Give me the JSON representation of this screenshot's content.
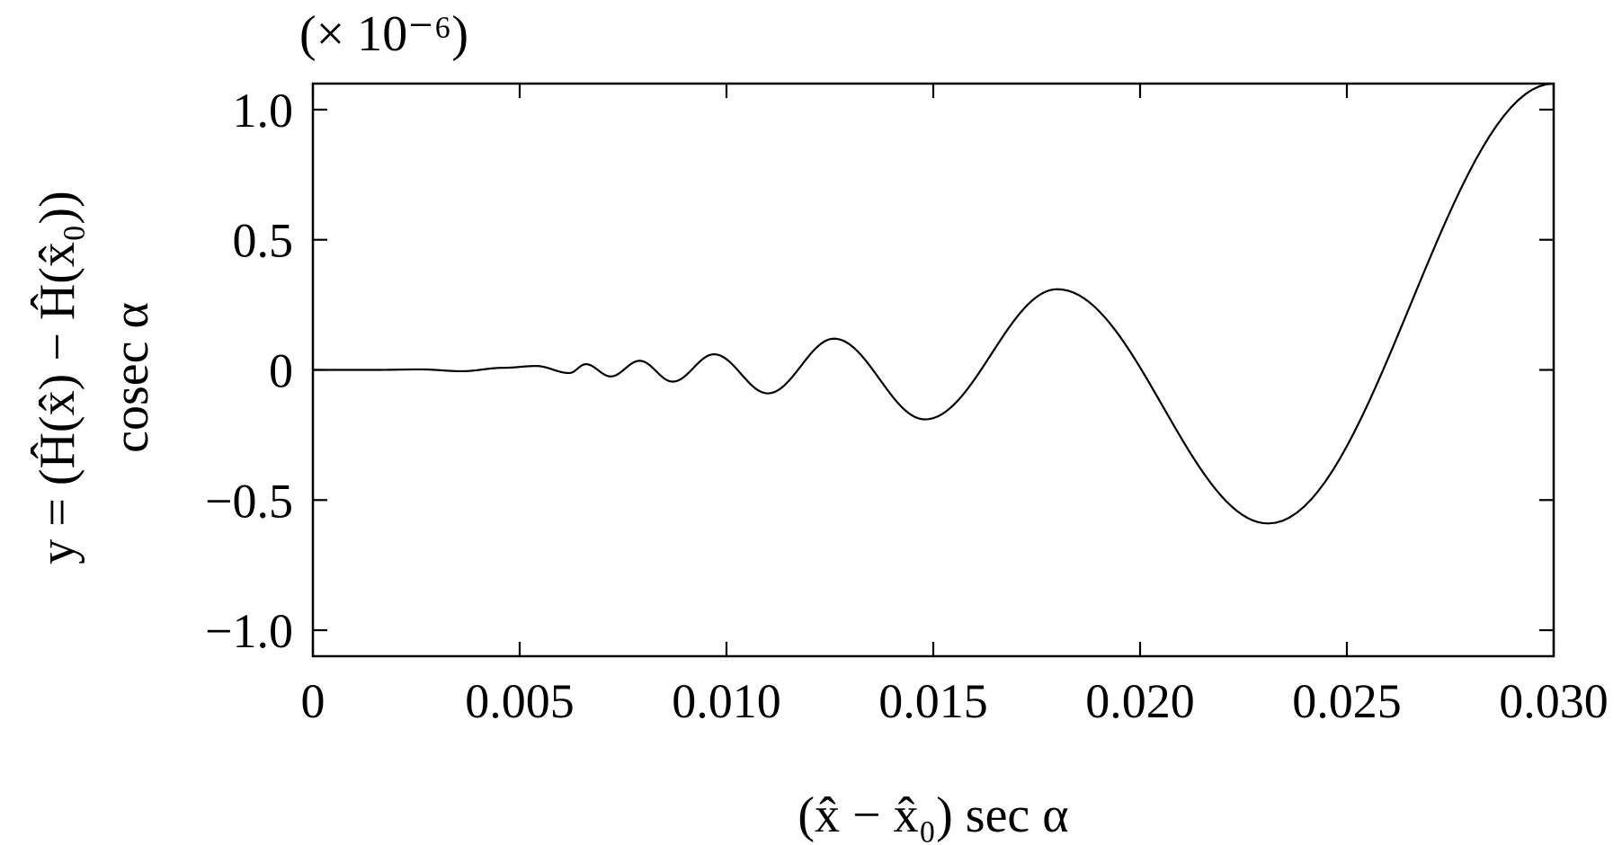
{
  "chart_data": {
    "type": "line",
    "title": "",
    "multiplier_label": "(× 10⁻⁶)",
    "xlabel": "(x̂ − x̂₀) sec α",
    "ylabel": "y = (Ĥ(x̂) − Ĥ(x̂₀)) cosec α",
    "ylabel_line1": "y = (Ĥ(x̂) − Ĥ(x̂₀))",
    "ylabel_line2": "cosec α",
    "xlim": [
      0,
      0.03
    ],
    "ylim": [
      -1.1,
      1.1
    ],
    "grid": false,
    "legend": "none",
    "line_color": "#000000",
    "x_ticks": [
      0,
      0.005,
      0.01,
      0.015,
      0.02,
      0.025,
      0.03
    ],
    "x_tick_labels": [
      "0",
      "0.005",
      "0.010",
      "0.015",
      "0.020",
      "0.025",
      "0.030"
    ],
    "y_ticks": [
      -1.0,
      -0.5,
      0,
      0.5,
      1.0
    ],
    "y_tick_labels": [
      "−1.0",
      "−0.5",
      "0",
      "0.5",
      "1.0"
    ],
    "series": [
      {
        "x": [
          0,
          0.0015,
          0.0026,
          0.0036,
          0.0046,
          0.0054,
          0.0062,
          0.0066,
          0.0072,
          0.0079,
          0.0087,
          0.0097,
          0.011,
          0.0126,
          0.0148,
          0.018,
          0.0231,
          0.03
        ],
        "y": [
          0,
          0,
          0.002,
          -0.005,
          0.008,
          0.015,
          -0.012,
          0.022,
          -0.025,
          0.035,
          -0.045,
          0.06,
          -0.09,
          0.12,
          -0.19,
          0.31,
          -0.59,
          1.1
        ]
      }
    ]
  }
}
